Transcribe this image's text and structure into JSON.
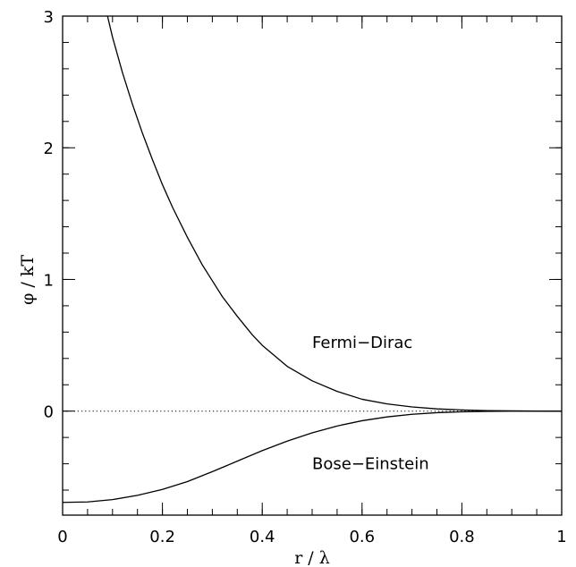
{
  "chart_data": {
    "type": "line",
    "xlabel": "r / λ",
    "ylabel": "φ / kT",
    "xlim": [
      0,
      1
    ],
    "ylim": [
      -0.79,
      3
    ],
    "x_ticks": [
      {
        "value": 0,
        "label": "0"
      },
      {
        "value": 0.2,
        "label": "0.2"
      },
      {
        "value": 0.4,
        "label": "0.4"
      },
      {
        "value": 0.6,
        "label": "0.6"
      },
      {
        "value": 0.8,
        "label": "0.8"
      },
      {
        "value": 1,
        "label": "1"
      }
    ],
    "x_minor_step": 0.05,
    "y_ticks": [
      {
        "value": 0,
        "label": "0"
      },
      {
        "value": 1,
        "label": "1"
      },
      {
        "value": 2,
        "label": "2"
      },
      {
        "value": 3,
        "label": "3"
      }
    ],
    "y_minor_step": 0.2,
    "grid": false,
    "series": [
      {
        "x": [
          0.09,
          0.1,
          0.12,
          0.14,
          0.16,
          0.18,
          0.2,
          0.22,
          0.25,
          0.28,
          0.3,
          0.32,
          0.35,
          0.38,
          0.4,
          0.45,
          0.5,
          0.55,
          0.6,
          0.65,
          0.7,
          0.75,
          0.8,
          0.85,
          0.9,
          0.95,
          1.0
        ],
        "y": [
          3.0,
          2.84,
          2.57,
          2.33,
          2.11,
          1.91,
          1.72,
          1.55,
          1.32,
          1.11,
          0.99,
          0.87,
          0.72,
          0.58,
          0.5,
          0.34,
          0.23,
          0.15,
          0.09,
          0.055,
          0.032,
          0.017,
          0.009,
          0.004,
          0.002,
          0.0005,
          0.0
        ]
      },
      {
        "x": [
          0.0,
          0.05,
          0.1,
          0.15,
          0.2,
          0.25,
          0.3,
          0.35,
          0.4,
          0.45,
          0.5,
          0.55,
          0.6,
          0.65,
          0.7,
          0.75,
          0.8,
          0.85,
          0.9,
          0.95,
          1.0
        ],
        "y": [
          -0.693,
          -0.69,
          -0.672,
          -0.64,
          -0.595,
          -0.535,
          -0.46,
          -0.38,
          -0.3,
          -0.228,
          -0.165,
          -0.113,
          -0.073,
          -0.044,
          -0.024,
          -0.012,
          -0.005,
          -0.002,
          -0.0006,
          -0.0001,
          0.0
        ]
      }
    ],
    "reference_line": {
      "y": 0,
      "style": "dotted"
    },
    "annotations": [
      {
        "text": "Fermi−Dirac",
        "x": 0.5,
        "y": 0.48
      },
      {
        "text": "Bose−Einstein",
        "x": 0.5,
        "y": -0.44
      }
    ]
  }
}
